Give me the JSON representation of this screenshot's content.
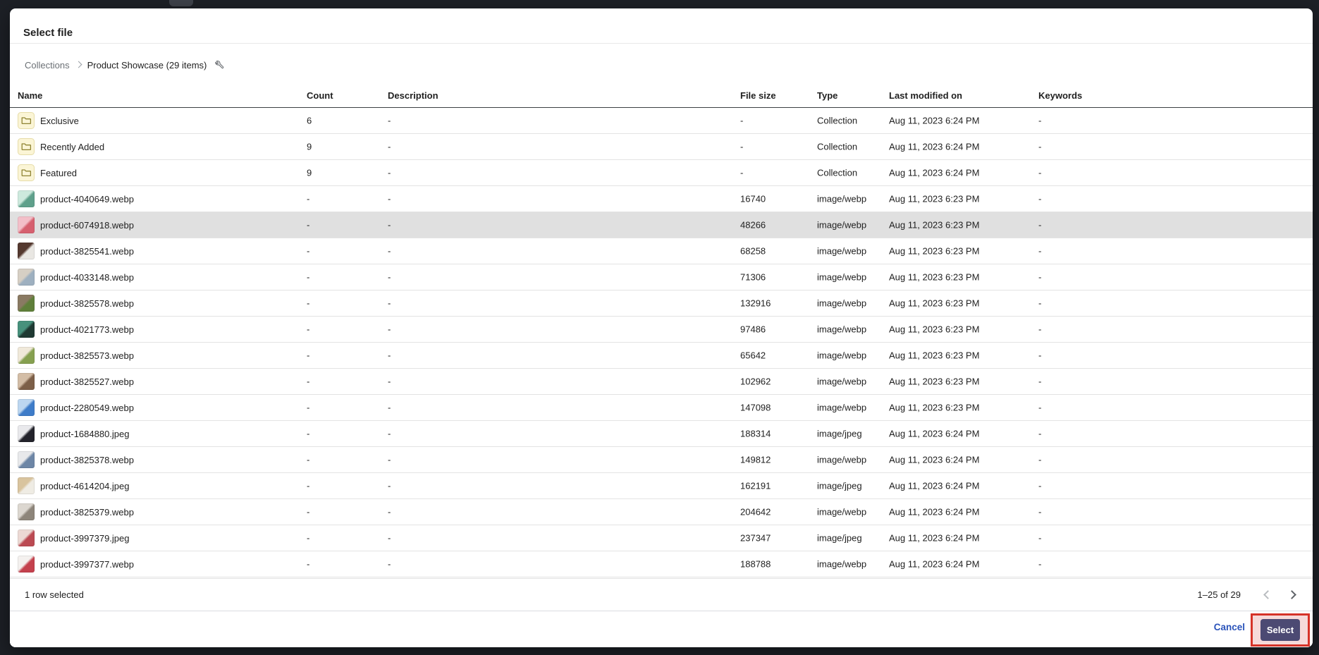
{
  "modal": {
    "title": "Select file",
    "breadcrumb": {
      "root": "Collections",
      "current": "Product Showcase (29 items)",
      "edit_icon": "wrench-icon"
    },
    "table": {
      "columns": [
        "Name",
        "Count",
        "Description",
        "File size",
        "Type",
        "Last modified on",
        "Keywords"
      ],
      "rows": [
        {
          "kind": "collection",
          "icon": "folder-icon",
          "name": "Exclusive",
          "count": "6",
          "description": "-",
          "file_size": "-",
          "type": "Collection",
          "last_modified": "Aug 11, 2023 6:24 PM",
          "keywords": "-",
          "selected": false
        },
        {
          "kind": "collection",
          "icon": "folder-icon",
          "name": "Recently Added",
          "count": "9",
          "description": "-",
          "file_size": "-",
          "type": "Collection",
          "last_modified": "Aug 11, 2023 6:24 PM",
          "keywords": "-",
          "selected": false
        },
        {
          "kind": "collection",
          "icon": "folder-icon",
          "name": "Featured",
          "count": "9",
          "description": "-",
          "file_size": "-",
          "type": "Collection",
          "last_modified": "Aug 11, 2023 6:24 PM",
          "keywords": "-",
          "selected": false
        },
        {
          "kind": "image",
          "icon": "image-thumbnail",
          "name": "product-4040649.webp",
          "count": "-",
          "description": "-",
          "file_size": "16740",
          "type": "image/webp",
          "last_modified": "Aug 11, 2023 6:23 PM",
          "keywords": "-",
          "selected": false,
          "thumb": [
            "#cde9dd",
            "#5fa08b"
          ]
        },
        {
          "kind": "image",
          "icon": "image-thumbnail",
          "name": "product-6074918.webp",
          "count": "-",
          "description": "-",
          "file_size": "48266",
          "type": "image/webp",
          "last_modified": "Aug 11, 2023 6:23 PM",
          "keywords": "-",
          "selected": true,
          "thumb": [
            "#f3bfc9",
            "#d6606f"
          ]
        },
        {
          "kind": "image",
          "icon": "image-thumbnail",
          "name": "product-3825541.webp",
          "count": "-",
          "description": "-",
          "file_size": "68258",
          "type": "image/webp",
          "last_modified": "Aug 11, 2023 6:23 PM",
          "keywords": "-",
          "selected": false,
          "thumb": [
            "#54392f",
            "#e9e7e3"
          ]
        },
        {
          "kind": "image",
          "icon": "image-thumbnail",
          "name": "product-4033148.webp",
          "count": "-",
          "description": "-",
          "file_size": "71306",
          "type": "image/webp",
          "last_modified": "Aug 11, 2023 6:23 PM",
          "keywords": "-",
          "selected": false,
          "thumb": [
            "#d6cfc4",
            "#9eb0c0"
          ]
        },
        {
          "kind": "image",
          "icon": "image-thumbnail",
          "name": "product-3825578.webp",
          "count": "-",
          "description": "-",
          "file_size": "132916",
          "type": "image/webp",
          "last_modified": "Aug 11, 2023 6:23 PM",
          "keywords": "-",
          "selected": false,
          "thumb": [
            "#8a7a63",
            "#5f7f3a"
          ]
        },
        {
          "kind": "image",
          "icon": "image-thumbnail",
          "name": "product-4021773.webp",
          "count": "-",
          "description": "-",
          "file_size": "97486",
          "type": "image/webp",
          "last_modified": "Aug 11, 2023 6:23 PM",
          "keywords": "-",
          "selected": false,
          "thumb": [
            "#47917c",
            "#1f3a33"
          ]
        },
        {
          "kind": "image",
          "icon": "image-thumbnail",
          "name": "product-3825573.webp",
          "count": "-",
          "description": "-",
          "file_size": "65642",
          "type": "image/webp",
          "last_modified": "Aug 11, 2023 6:23 PM",
          "keywords": "-",
          "selected": false,
          "thumb": [
            "#f0e9da",
            "#86a050"
          ]
        },
        {
          "kind": "image",
          "icon": "image-thumbnail",
          "name": "product-3825527.webp",
          "count": "-",
          "description": "-",
          "file_size": "102962",
          "type": "image/webp",
          "last_modified": "Aug 11, 2023 6:23 PM",
          "keywords": "-",
          "selected": false,
          "thumb": [
            "#d3bda6",
            "#7c5f48"
          ]
        },
        {
          "kind": "image",
          "icon": "image-thumbnail",
          "name": "product-2280549.webp",
          "count": "-",
          "description": "-",
          "file_size": "147098",
          "type": "image/webp",
          "last_modified": "Aug 11, 2023 6:23 PM",
          "keywords": "-",
          "selected": false,
          "thumb": [
            "#bcd6f0",
            "#3e7cc9"
          ]
        },
        {
          "kind": "image",
          "icon": "image-thumbnail",
          "name": "product-1684880.jpeg",
          "count": "-",
          "description": "-",
          "file_size": "188314",
          "type": "image/jpeg",
          "last_modified": "Aug 11, 2023 6:24 PM",
          "keywords": "-",
          "selected": false,
          "thumb": [
            "#e9e9ec",
            "#23232b"
          ]
        },
        {
          "kind": "image",
          "icon": "image-thumbnail",
          "name": "product-3825378.webp",
          "count": "-",
          "description": "-",
          "file_size": "149812",
          "type": "image/webp",
          "last_modified": "Aug 11, 2023 6:24 PM",
          "keywords": "-",
          "selected": false,
          "thumb": [
            "#e8e9eb",
            "#6d86a6"
          ]
        },
        {
          "kind": "image",
          "icon": "image-thumbnail",
          "name": "product-4614204.jpeg",
          "count": "-",
          "description": "-",
          "file_size": "162191",
          "type": "image/jpeg",
          "last_modified": "Aug 11, 2023 6:24 PM",
          "keywords": "-",
          "selected": false,
          "thumb": [
            "#d9c49e",
            "#efece4"
          ]
        },
        {
          "kind": "image",
          "icon": "image-thumbnail",
          "name": "product-3825379.webp",
          "count": "-",
          "description": "-",
          "file_size": "204642",
          "type": "image/webp",
          "last_modified": "Aug 11, 2023 6:24 PM",
          "keywords": "-",
          "selected": false,
          "thumb": [
            "#dcd7d0",
            "#8d857a"
          ]
        },
        {
          "kind": "image",
          "icon": "image-thumbnail",
          "name": "product-3997379.jpeg",
          "count": "-",
          "description": "-",
          "file_size": "237347",
          "type": "image/jpeg",
          "last_modified": "Aug 11, 2023 6:24 PM",
          "keywords": "-",
          "selected": false,
          "thumb": [
            "#ecd9d4",
            "#bb4a52"
          ]
        },
        {
          "kind": "image",
          "icon": "image-thumbnail",
          "name": "product-3997377.webp",
          "count": "-",
          "description": "-",
          "file_size": "188788",
          "type": "image/webp",
          "last_modified": "Aug 11, 2023 6:24 PM",
          "keywords": "-",
          "selected": false,
          "thumb": [
            "#f4f1ef",
            "#c4414d"
          ]
        }
      ]
    },
    "footer": {
      "selection_text": "1 row selected",
      "pagination": {
        "range_label": "1–25 of 29",
        "prev_enabled": false,
        "next_enabled": true
      }
    },
    "actions": {
      "cancel_label": "Cancel",
      "select_label": "Select"
    }
  },
  "colors": {
    "link_color": "#2a53ba",
    "select_button_bg": "#4c4a73",
    "annotation_border": "#d63228",
    "annotation_fill": "#f6d9d9",
    "selected_row_bg": "#e0e0e0",
    "folder_icon_bg": "#fbf5d6",
    "folder_icon_border": "#e6dca8",
    "folder_icon_stroke": "#8f8433"
  }
}
